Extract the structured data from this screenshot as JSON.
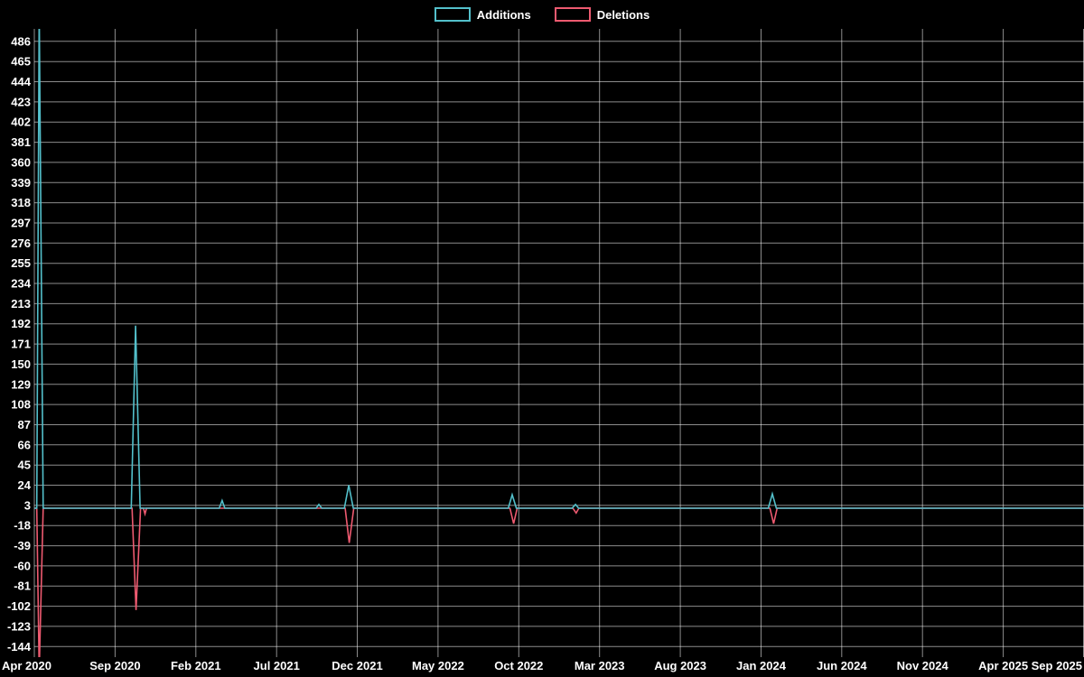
{
  "legend": {
    "items": [
      {
        "label": "Additions",
        "color": "#53c0cb"
      },
      {
        "label": "Deletions",
        "color": "#ee5a70"
      }
    ]
  },
  "chart_data": {
    "type": "line",
    "title": "",
    "xlabel": "",
    "ylabel": "",
    "background": "#000000",
    "grid": true,
    "legend_position": "top-center",
    "xlim": [
      0,
      65
    ],
    "ylim": [
      -155,
      499
    ],
    "x_tick_labels": [
      "Apr 2020",
      "Sep 2020",
      "Feb 2021",
      "Jul 2021",
      "Dec 2021",
      "May 2022",
      "Oct 2022",
      "Mar 2023",
      "Aug 2023",
      "Jan 2024",
      "Jun 2024",
      "Nov 2024",
      "Apr 2025",
      "Sep 2025"
    ],
    "x_tick_positions": [
      0,
      5,
      10,
      15,
      20,
      25,
      30,
      35,
      40,
      45,
      50,
      55,
      60,
      65
    ],
    "y_ticks": [
      486,
      465,
      444,
      423,
      402,
      381,
      360,
      339,
      318,
      297,
      276,
      255,
      234,
      213,
      192,
      171,
      150,
      129,
      108,
      87,
      66,
      45,
      24,
      3,
      -18,
      -39,
      -60,
      -81,
      -102,
      -123,
      -144
    ],
    "series": [
      {
        "name": "Additions",
        "color": "#53c0cb",
        "points": [
          [
            0,
            0
          ],
          [
            0.15,
            0
          ],
          [
            0.3,
            520
          ],
          [
            0.55,
            0
          ],
          [
            6.0,
            0
          ],
          [
            6.27,
            190
          ],
          [
            6.55,
            0
          ],
          [
            11.45,
            0
          ],
          [
            11.63,
            8
          ],
          [
            11.8,
            0
          ],
          [
            17.45,
            0
          ],
          [
            17.62,
            4
          ],
          [
            17.8,
            0
          ],
          [
            19.2,
            0
          ],
          [
            19.47,
            24
          ],
          [
            19.75,
            0
          ],
          [
            29.35,
            0
          ],
          [
            29.59,
            14
          ],
          [
            29.85,
            0
          ],
          [
            33.3,
            0
          ],
          [
            33.51,
            4
          ],
          [
            33.7,
            0
          ],
          [
            45.45,
            0
          ],
          [
            45.7,
            15
          ],
          [
            45.95,
            0
          ],
          [
            65,
            0
          ]
        ]
      },
      {
        "name": "Deletions",
        "color": "#ee5a70",
        "points": [
          [
            0,
            0
          ],
          [
            0.15,
            0
          ],
          [
            0.3,
            -170
          ],
          [
            0.55,
            0
          ],
          [
            6.05,
            0
          ],
          [
            6.3,
            -106
          ],
          [
            6.58,
            0
          ],
          [
            6.75,
            0
          ],
          [
            6.85,
            -6
          ],
          [
            6.95,
            0
          ],
          [
            19.25,
            0
          ],
          [
            19.5,
            -36
          ],
          [
            19.78,
            0
          ],
          [
            29.45,
            0
          ],
          [
            29.68,
            -16
          ],
          [
            29.9,
            0
          ],
          [
            33.35,
            0
          ],
          [
            33.55,
            -5
          ],
          [
            33.72,
            0
          ],
          [
            45.55,
            0
          ],
          [
            45.78,
            -16
          ],
          [
            46.0,
            0
          ],
          [
            65,
            0
          ]
        ]
      }
    ]
  }
}
